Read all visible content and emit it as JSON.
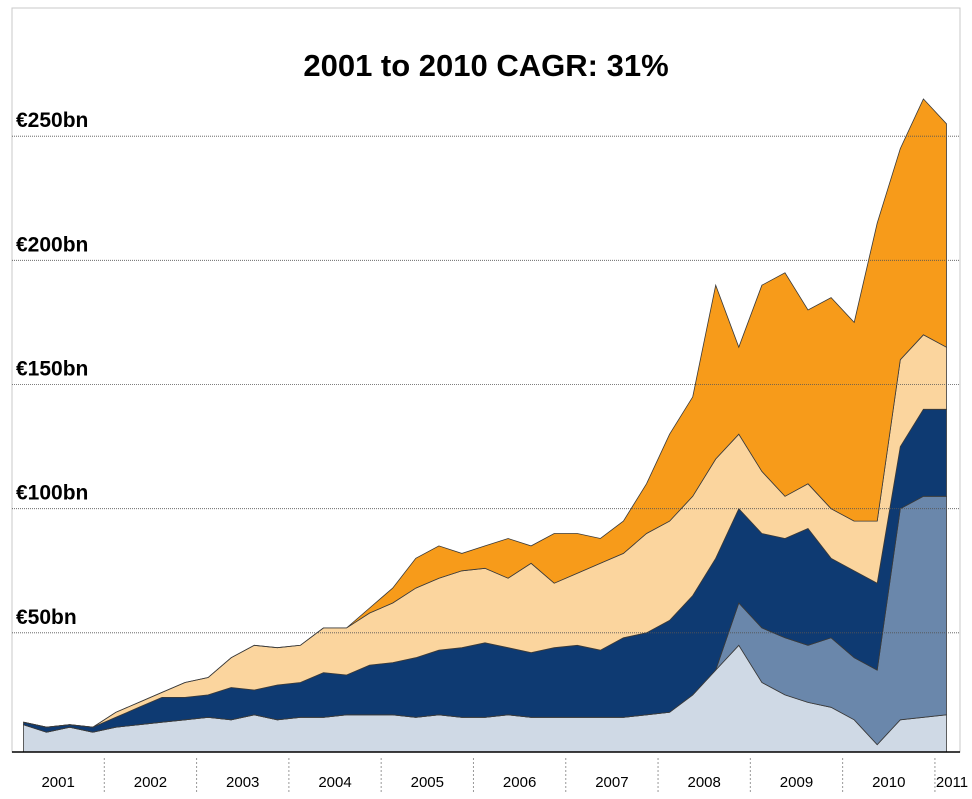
{
  "chart_data": {
    "type": "stacked_area",
    "title": "2001 to 2010 CAGR: 31%",
    "categories": [
      "2001",
      null,
      null,
      null,
      "2002",
      null,
      null,
      null,
      "2003",
      null,
      null,
      null,
      "2004",
      null,
      null,
      null,
      "2005",
      null,
      null,
      null,
      "2006",
      null,
      null,
      null,
      "2007",
      null,
      null,
      null,
      "2008",
      null,
      null,
      null,
      "2009",
      null,
      null,
      null,
      "2010",
      null,
      null,
      null,
      "2011"
    ],
    "series": [
      {
        "color": "#cfd9e5",
        "values": [
          13,
          10,
          12,
          10,
          12,
          13,
          14,
          15,
          16,
          15,
          17,
          15,
          16,
          16,
          17,
          17,
          17,
          16,
          17,
          16,
          16,
          17,
          16,
          16,
          16,
          16,
          16,
          17,
          18,
          25,
          35,
          45,
          30,
          25,
          22,
          20,
          15,
          5,
          15,
          16,
          17
        ]
      },
      {
        "color": "#6a87ab",
        "values": [
          0,
          0,
          0,
          0,
          0,
          0,
          0,
          0,
          0,
          0,
          0,
          0,
          0,
          0,
          0,
          0,
          0,
          0,
          0,
          0,
          0,
          0,
          0,
          0,
          0,
          0,
          0,
          0,
          0,
          0,
          0,
          17,
          22,
          23,
          23,
          28,
          25,
          30,
          85,
          89,
          88
        ]
      },
      {
        "color": "#0e3a72",
        "values": [
          1,
          2,
          1,
          2,
          4,
          7,
          10,
          9,
          9,
          13,
          10,
          14,
          14,
          18,
          16,
          20,
          21,
          24,
          26,
          28,
          30,
          27,
          26,
          28,
          29,
          27,
          32,
          33,
          37,
          40,
          45,
          38,
          38,
          40,
          47,
          32,
          35,
          35,
          25,
          35,
          35
        ]
      },
      {
        "color": "#fbd59e",
        "values": [
          0,
          0,
          0,
          0,
          2,
          2,
          2,
          6,
          7,
          12,
          18,
          15,
          15,
          18,
          19,
          21,
          24,
          28,
          29,
          31,
          30,
          28,
          36,
          26,
          29,
          35,
          34,
          40,
          40,
          40,
          40,
          30,
          25,
          17,
          18,
          20,
          20,
          25,
          35,
          30,
          25
        ]
      },
      {
        "color": "#f79b1a",
        "values": [
          0,
          0,
          0,
          0,
          0,
          0,
          0,
          0,
          0,
          0,
          0,
          0,
          0,
          0,
          0,
          2,
          6,
          12,
          13,
          7,
          9,
          16,
          7,
          20,
          16,
          10,
          13,
          20,
          35,
          40,
          70,
          35,
          75,
          90,
          70,
          85,
          80,
          120,
          85,
          95,
          90
        ]
      }
    ],
    "ylim": [
      0,
      300
    ],
    "yticks": [
      {
        "value": 50,
        "label": "€50bn"
      },
      {
        "value": 100,
        "label": "€100bn"
      },
      {
        "value": 150,
        "label": "€150bn"
      },
      {
        "value": 200,
        "label": "€200bn"
      },
      {
        "value": 250,
        "label": "€250bn"
      }
    ],
    "grid": true
  }
}
